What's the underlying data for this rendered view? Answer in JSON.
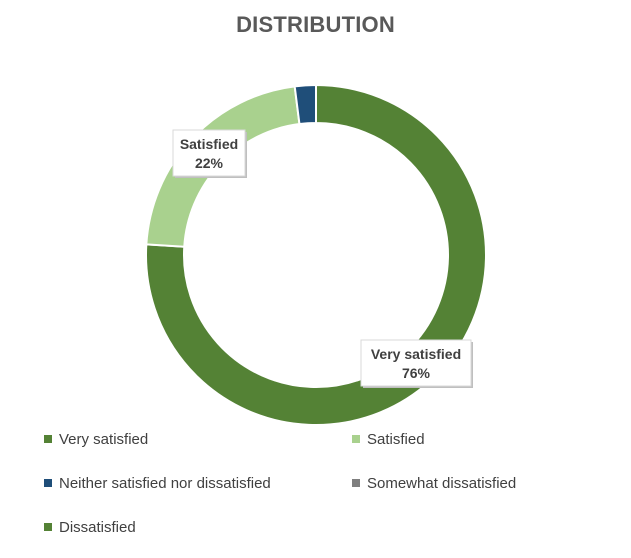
{
  "chart_data": {
    "type": "pie",
    "title": "DISTRIBUTION",
    "subtype": "donut",
    "categories": [
      "Very satisfied",
      "Satisfied",
      "Neither satisfied nor dissatisfied",
      "Somewhat dissatisfied",
      "Dissatisfied"
    ],
    "values": [
      76,
      22,
      2,
      0,
      0
    ],
    "value_labels": [
      "76%",
      "22%",
      "",
      "",
      ""
    ],
    "colors": [
      "#548235",
      "#A9D18E",
      "#1F4E79",
      "#7F7F7F",
      "#548235"
    ],
    "legend_position": "bottom",
    "data_labels_shown_for": [
      "Very satisfied",
      "Satisfied"
    ]
  }
}
